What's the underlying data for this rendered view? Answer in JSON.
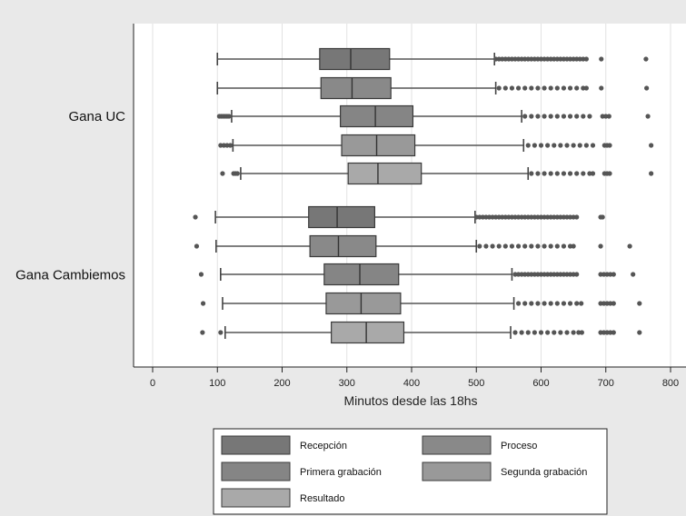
{
  "chart_data": {
    "type": "boxplot",
    "orientation": "horizontal",
    "xlabel": "Minutos desde las 18hs",
    "xlim": [
      -30,
      805
    ],
    "xticks": [
      0,
      100,
      200,
      300,
      400,
      500,
      600,
      700,
      800
    ],
    "grid": true,
    "legend_position": "bottom",
    "legend": [
      "Recepción",
      "Proceso",
      "Primera grabación",
      "Segunda grabación",
      "Resultado"
    ],
    "series_colors": [
      "#777777",
      "#898989",
      "#858585",
      "#999999",
      "#a9a9a9"
    ],
    "groups": [
      {
        "name": "Gana UC",
        "boxes": [
          {
            "series": "Recepción",
            "whisker_low": 100,
            "q1": 258,
            "median": 306,
            "q3": 366,
            "whisker_high": 528,
            "outliers": [
              530,
              535,
              540,
              545,
              550,
              555,
              560,
              565,
              570,
              575,
              580,
              585,
              590,
              595,
              600,
              605,
              610,
              615,
              620,
              625,
              630,
              635,
              640,
              645,
              650,
              655,
              660,
              665,
              670,
              693,
              762
            ]
          },
          {
            "series": "Proceso",
            "whisker_low": 100,
            "q1": 260,
            "median": 308,
            "q3": 368,
            "whisker_high": 530,
            "outliers": [
              535,
              545,
              555,
              565,
              575,
              585,
              595,
              605,
              615,
              625,
              635,
              645,
              655,
              665,
              670,
              693,
              763
            ]
          },
          {
            "series": "Primera grabación",
            "whisker_low": 122,
            "q1": 290,
            "median": 344,
            "q3": 402,
            "whisker_high": 570,
            "outliers": [
              103,
              106,
              109,
              112,
              115,
              118,
              575,
              585,
              595,
              605,
              615,
              625,
              635,
              645,
              655,
              665,
              675,
              695,
              700,
              705,
              765
            ]
          },
          {
            "series": "Segunda grabación",
            "whisker_low": 124,
            "q1": 292,
            "median": 346,
            "q3": 405,
            "whisker_high": 573,
            "outliers": [
              105,
              110,
              115,
              120,
              580,
              590,
              600,
              610,
              620,
              630,
              640,
              650,
              660,
              670,
              680,
              698,
              702,
              706,
              770
            ]
          },
          {
            "series": "Resultado",
            "whisker_low": 136,
            "q1": 302,
            "median": 348,
            "q3": 415,
            "whisker_high": 580,
            "outliers": [
              108,
              125,
              128,
              131,
              585,
              595,
              605,
              615,
              625,
              635,
              645,
              655,
              665,
              675,
              680,
              698,
              702,
              706,
              770
            ]
          }
        ]
      },
      {
        "name": "Gana Cambiemos",
        "boxes": [
          {
            "series": "Recepción",
            "whisker_low": 97,
            "q1": 241,
            "median": 285,
            "q3": 343,
            "whisker_high": 498,
            "outliers": [
              66,
              500,
              505,
              510,
              515,
              520,
              525,
              530,
              535,
              540,
              545,
              550,
              555,
              560,
              565,
              570,
              575,
              580,
              585,
              590,
              595,
              600,
              605,
              610,
              615,
              620,
              625,
              630,
              635,
              640,
              645,
              650,
              655,
              692,
              695
            ]
          },
          {
            "series": "Proceso",
            "whisker_low": 98,
            "q1": 243,
            "median": 287,
            "q3": 345,
            "whisker_high": 500,
            "outliers": [
              68,
              505,
              515,
              525,
              535,
              545,
              555,
              565,
              575,
              585,
              595,
              605,
              615,
              625,
              635,
              645,
              650,
              692,
              737
            ]
          },
          {
            "series": "Primera grabación",
            "whisker_low": 105,
            "q1": 265,
            "median": 320,
            "q3": 380,
            "whisker_high": 555,
            "outliers": [
              75,
              560,
              565,
              570,
              575,
              580,
              585,
              590,
              595,
              600,
              605,
              610,
              615,
              620,
              625,
              630,
              635,
              640,
              645,
              650,
              655,
              692,
              697,
              702,
              707,
              712,
              742
            ]
          },
          {
            "series": "Segunda grabación",
            "whisker_low": 108,
            "q1": 268,
            "median": 322,
            "q3": 383,
            "whisker_high": 558,
            "outliers": [
              78,
              565,
              575,
              585,
              595,
              605,
              615,
              625,
              635,
              645,
              655,
              662,
              692,
              697,
              702,
              707,
              712,
              752
            ]
          },
          {
            "series": "Resultado",
            "whisker_low": 112,
            "q1": 276,
            "median": 330,
            "q3": 388,
            "whisker_high": 553,
            "outliers": [
              77,
              105,
              560,
              570,
              580,
              590,
              600,
              610,
              620,
              630,
              640,
              650,
              658,
              663,
              692,
              697,
              702,
              707,
              712,
              752
            ]
          }
        ]
      }
    ]
  }
}
